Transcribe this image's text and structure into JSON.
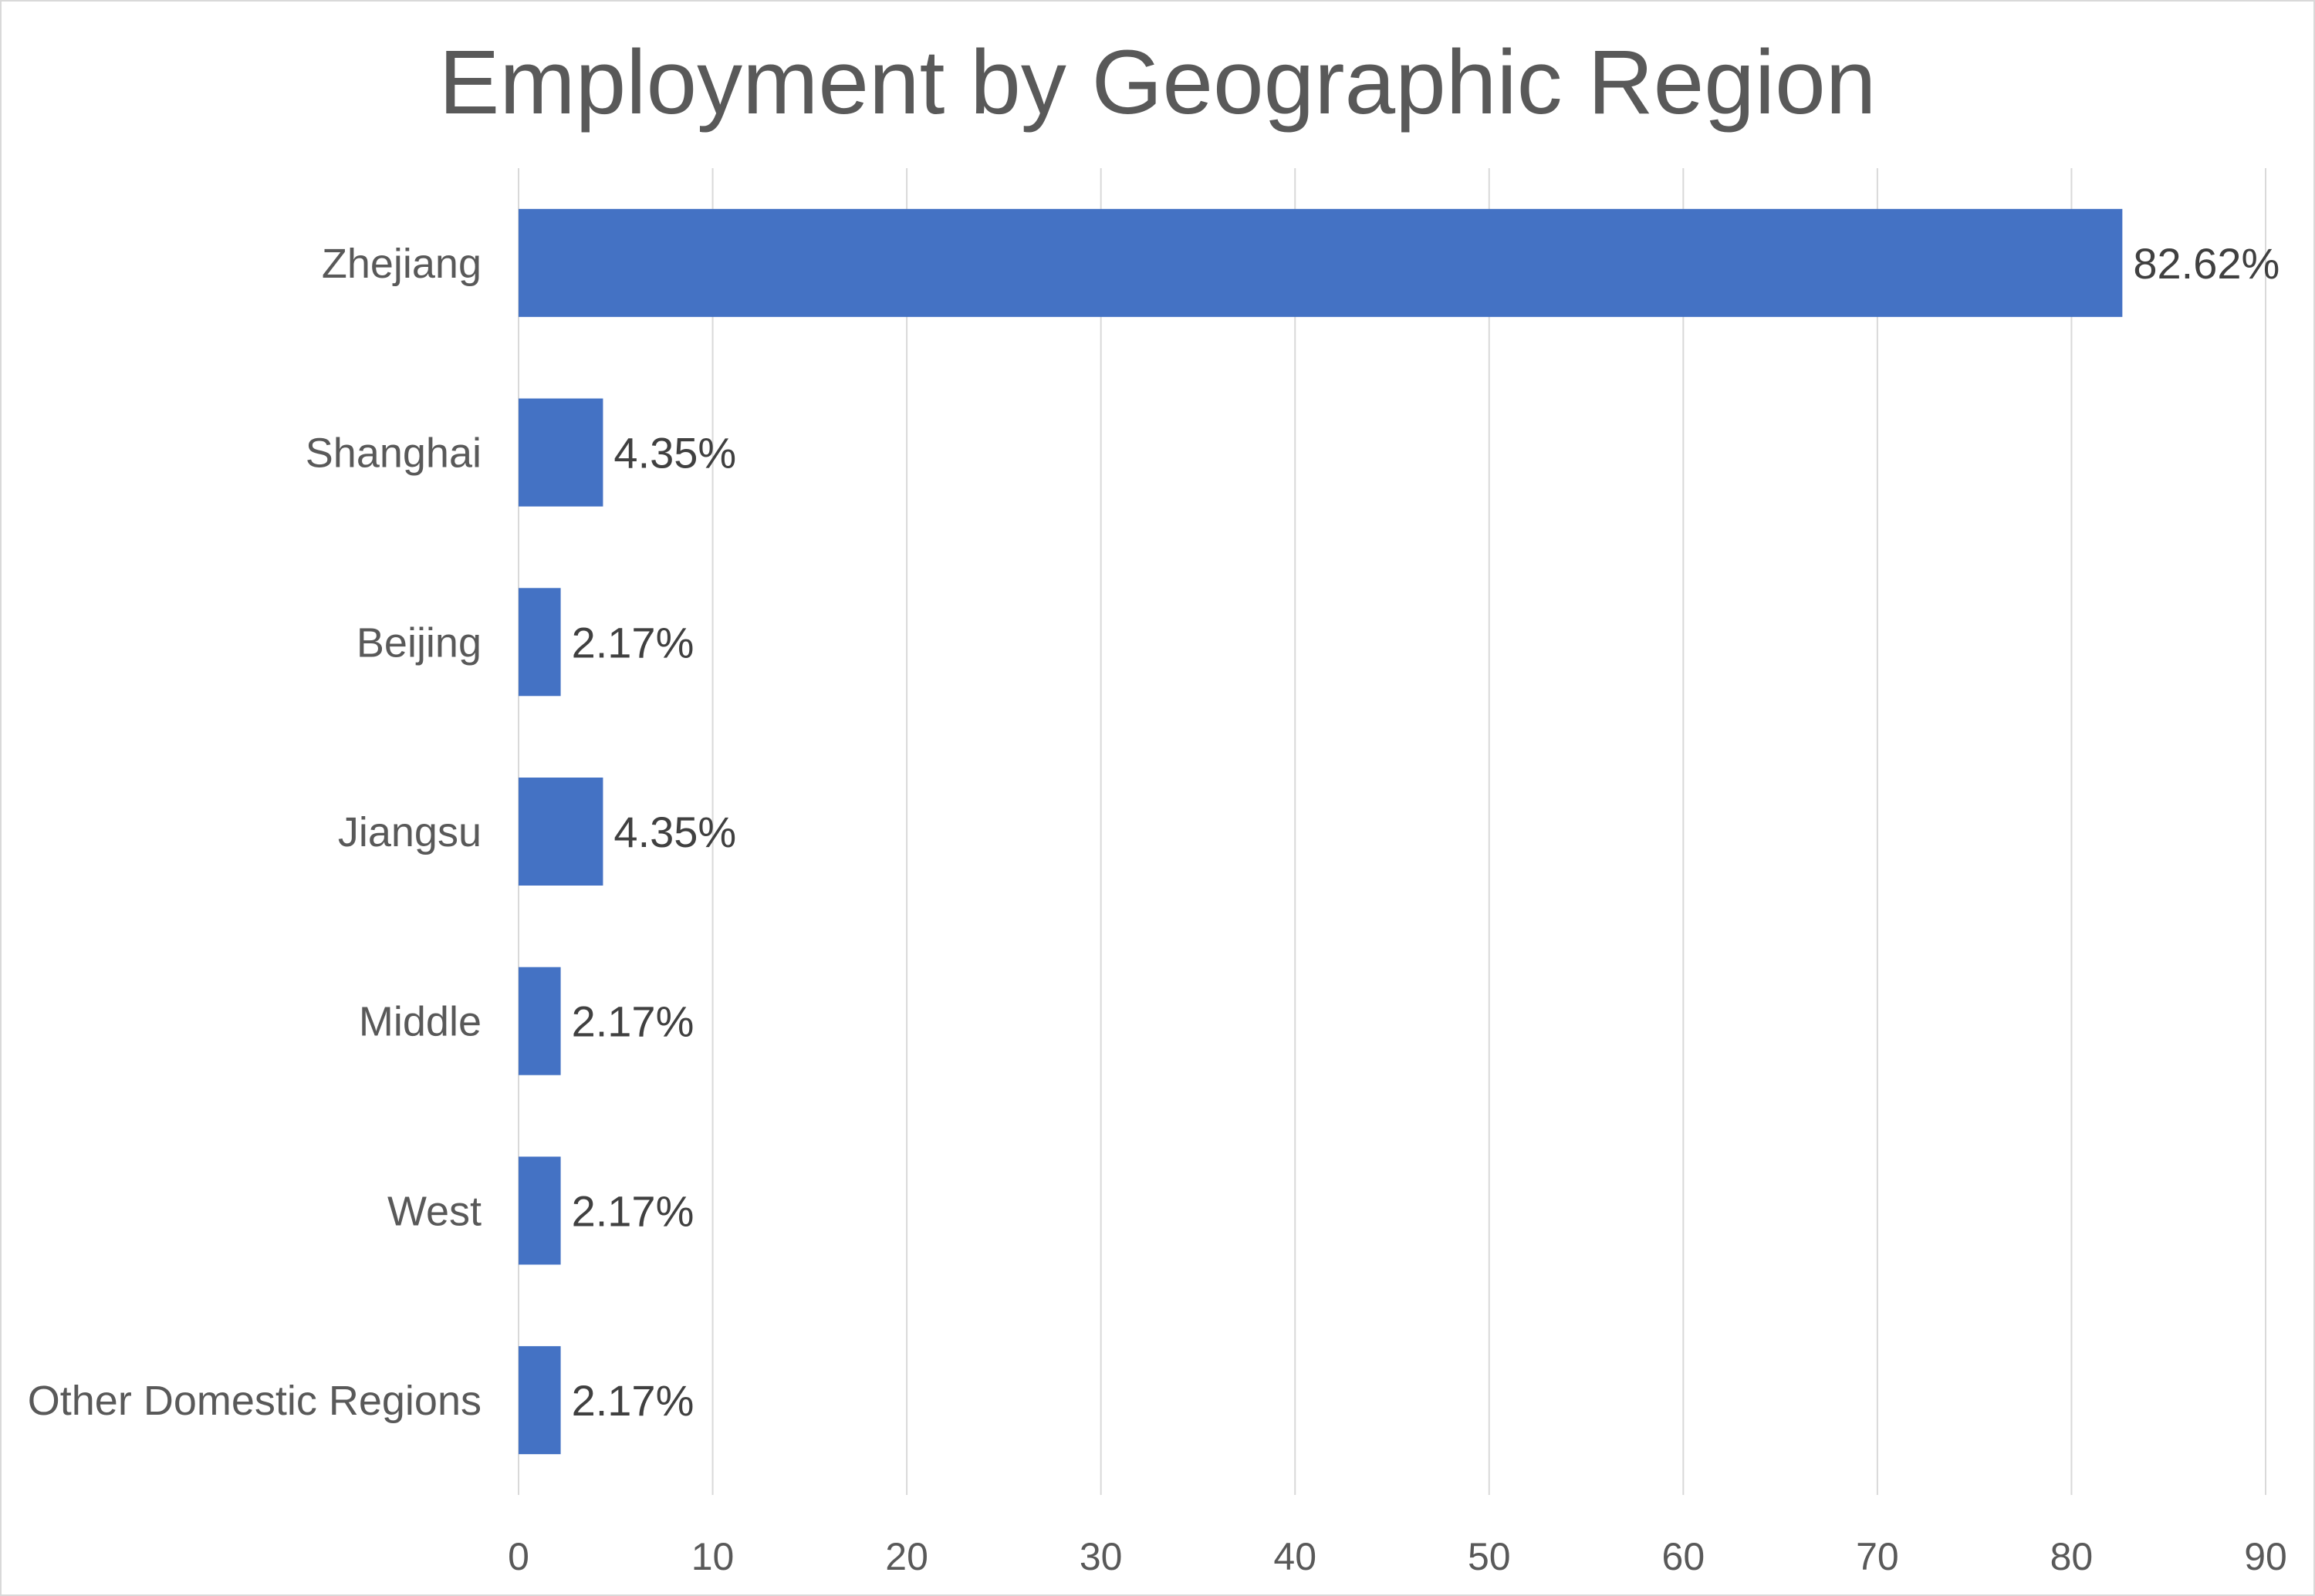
{
  "chart_data": {
    "type": "bar",
    "orientation": "horizontal",
    "title": "Employment by Geographic Region",
    "xlabel": "",
    "ylabel": "",
    "categories": [
      "Zhejiang",
      "Shanghai",
      "Beijing",
      "Jiangsu",
      "Middle",
      "West",
      "Other Domestic Regions"
    ],
    "values": [
      82.62,
      4.35,
      2.17,
      4.35,
      2.17,
      2.17,
      2.17
    ],
    "data_labels": [
      "82.62%",
      "4.35%",
      "2.17%",
      "4.35%",
      "2.17%",
      "2.17%",
      "2.17%"
    ],
    "xlim": [
      0,
      90
    ],
    "x_ticks": [
      "0",
      "10",
      "20",
      "30",
      "40",
      "50",
      "60",
      "70",
      "80",
      "90"
    ],
    "grid": "vertical",
    "legend": "none",
    "bar_color": "#4472c4",
    "grid_color": "#d9d9d9",
    "text_color": "#595959"
  }
}
